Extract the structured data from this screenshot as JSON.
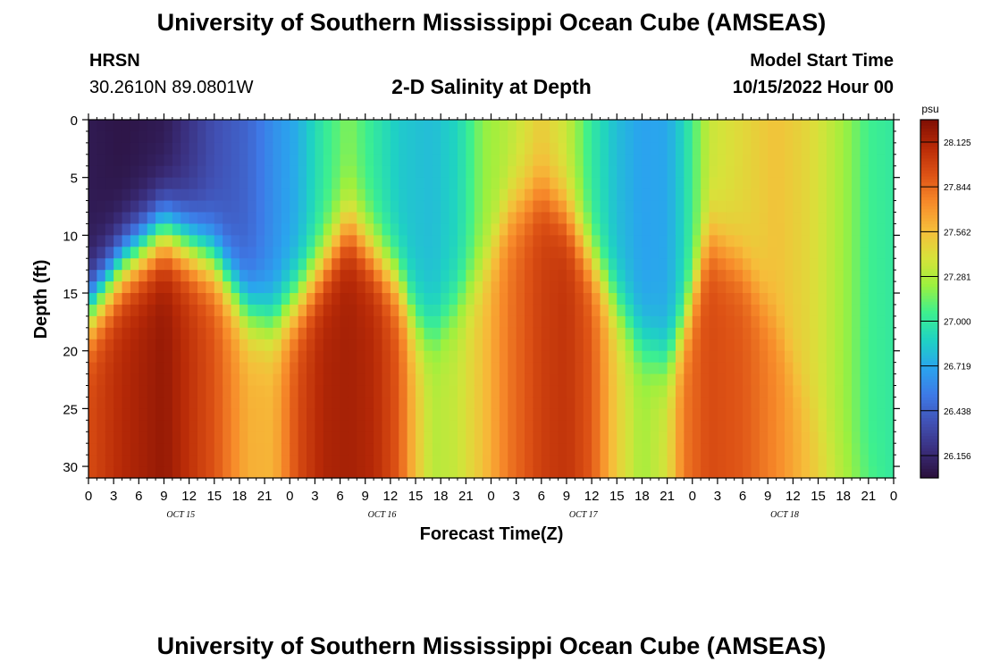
{
  "header": {
    "title": "University of Southern Mississippi Ocean Cube (AMSEAS)",
    "station": "HRSN",
    "coords": "30.2610N  89.0801W",
    "chart_title": "2-D Salinity at Depth",
    "model_label": "Model Start Time",
    "model_time": "10/15/2022 Hour 00"
  },
  "footer": {
    "title": "University of Southern Mississippi Ocean Cube (AMSEAS)"
  },
  "chart_data": {
    "type": "heatmap",
    "title": "2-D Salinity at Depth",
    "xlabel": "Forecast Time(Z)",
    "ylabel": "Depth (ft)",
    "x_hours_range": [
      0,
      96
    ],
    "y_range_ft": [
      0,
      31
    ],
    "x_tick_labels": [
      "0",
      "3",
      "6",
      "9",
      "12",
      "15",
      "18",
      "21",
      "0",
      "3",
      "6",
      "9",
      "12",
      "15",
      "18",
      "21",
      "0",
      "3",
      "6",
      "9",
      "12",
      "15",
      "18",
      "21",
      "0",
      "3",
      "6",
      "9",
      "12",
      "15",
      "18",
      "21",
      "0"
    ],
    "y_ticks": [
      0,
      5,
      10,
      15,
      20,
      25,
      30
    ],
    "day_labels": [
      {
        "label": "OCT 15",
        "hour": 11
      },
      {
        "label": "OCT 16",
        "hour": 35
      },
      {
        "label": "OCT 17",
        "hour": 59
      },
      {
        "label": "OCT 18",
        "hour": 83
      }
    ],
    "colorbar": {
      "unit": "psu",
      "min": 26.016,
      "max": 28.265,
      "tick_values": [
        "28.125",
        "27.844",
        "27.562",
        "27.281",
        "27.000",
        "26.719",
        "26.438",
        "26.156"
      ],
      "colors": [
        "#2a0f3a",
        "#3a2e7c",
        "#4151b4",
        "#3e79e6",
        "#2aa4ee",
        "#1fd2c3",
        "#3ef08e",
        "#9df03e",
        "#d8e23a",
        "#f6bd3a",
        "#f78a2a",
        "#dd5215",
        "#b82a07",
        "#7f0f04"
      ]
    },
    "columns_at_hour": [
      {
        "hour": 0,
        "boundary_ft": 16.5,
        "surface": 26.08,
        "bottom": 27.95
      },
      {
        "hour": 4,
        "boundary_ft": 12.5,
        "surface": 26.05,
        "bottom": 28.1
      },
      {
        "hour": 9,
        "boundary_ft": 9.5,
        "surface": 26.08,
        "bottom": 28.2
      },
      {
        "hour": 15,
        "boundary_ft": 12.0,
        "surface": 26.35,
        "bottom": 27.92
      },
      {
        "hour": 19,
        "boundary_ft": 16.5,
        "surface": 26.45,
        "bottom": 27.62
      },
      {
        "hour": 22,
        "boundary_ft": 17.5,
        "surface": 26.62,
        "bottom": 27.6
      },
      {
        "hour": 25,
        "boundary_ft": 15.5,
        "surface": 26.75,
        "bottom": 27.95
      },
      {
        "hour": 28,
        "boundary_ft": 12.5,
        "surface": 27.0,
        "bottom": 28.12
      },
      {
        "hour": 31,
        "boundary_ft": 9.0,
        "surface": 27.18,
        "bottom": 28.15
      },
      {
        "hour": 34,
        "boundary_ft": 11.5,
        "surface": 27.0,
        "bottom": 28.1
      },
      {
        "hour": 37,
        "boundary_ft": 14.0,
        "surface": 26.85,
        "bottom": 27.9
      },
      {
        "hour": 39,
        "boundary_ft": 17.5,
        "surface": 26.82,
        "bottom": 27.55
      },
      {
        "hour": 41,
        "boundary_ft": 18.5,
        "surface": 26.8,
        "bottom": 27.3
      },
      {
        "hour": 44,
        "boundary_ft": 16.0,
        "surface": 26.9,
        "bottom": 27.35
      },
      {
        "hour": 47,
        "boundary_ft": 13.0,
        "surface": 27.2,
        "bottom": 27.55
      },
      {
        "hour": 50,
        "boundary_ft": 8.0,
        "surface": 27.3,
        "bottom": 27.8
      },
      {
        "hour": 54,
        "boundary_ft": 6.0,
        "surface": 27.5,
        "bottom": 28.0
      },
      {
        "hour": 57,
        "boundary_ft": 8.0,
        "surface": 27.35,
        "bottom": 28.05
      },
      {
        "hour": 60,
        "boundary_ft": 12.0,
        "surface": 27.0,
        "bottom": 27.9
      },
      {
        "hour": 63,
        "boundary_ft": 16.0,
        "surface": 26.8,
        "bottom": 27.5
      },
      {
        "hour": 66,
        "boundary_ft": 19.5,
        "surface": 26.7,
        "bottom": 27.25
      },
      {
        "hour": 69,
        "boundary_ft": 21.0,
        "surface": 26.72,
        "bottom": 27.4
      },
      {
        "hour": 71,
        "boundary_ft": 18.0,
        "surface": 26.9,
        "bottom": 27.8
      },
      {
        "hour": 74,
        "boundary_ft": 10.0,
        "surface": 27.35,
        "bottom": 27.95
      },
      {
        "hour": 78,
        "boundary_ft": 12.5,
        "surface": 27.45,
        "bottom": 27.9
      },
      {
        "hour": 82,
        "boundary_ft": 17.5,
        "surface": 27.55,
        "bottom": 27.75
      },
      {
        "hour": 86,
        "boundary_ft": 25.0,
        "surface": 27.45,
        "bottom": 27.55
      },
      {
        "hour": 89,
        "boundary_ft": 28.0,
        "surface": 27.3,
        "bottom": 27.35
      },
      {
        "hour": 93,
        "boundary_ft": 30.0,
        "surface": 27.05,
        "bottom": 27.1
      },
      {
        "hour": 96,
        "boundary_ft": 31.0,
        "surface": 27.0,
        "bottom": 27.0
      }
    ]
  }
}
